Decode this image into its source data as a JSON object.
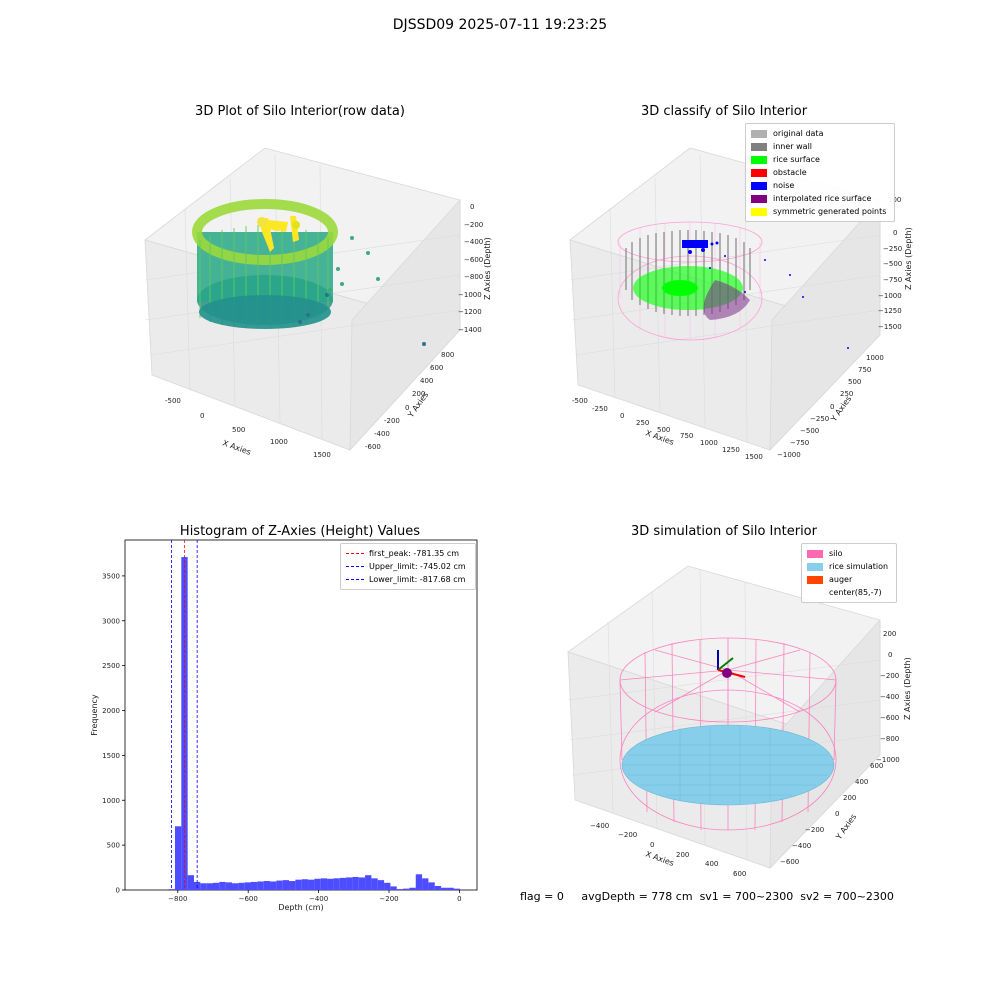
{
  "page": {
    "suptitle": "DJSSD09 2025-07-11 19:23:25",
    "status_line": {
      "flag": "flag = 0",
      "avg_depth": "avgDepth = 778 cm",
      "sv1": "sv1 = 700~2300",
      "sv2": "sv2 = 700~2300"
    }
  },
  "colors": {
    "rice_surface": "#00ff00",
    "inner_wall": "#808080",
    "original_data": "#b0b0b0",
    "obstacle": "#ff0000",
    "noise": "#0000ff",
    "interpolated_rice_surface": "#800080",
    "symmetric_generated_points": "#ffff00",
    "silo": "#ff69b4",
    "rice_simulation": "#87ceeb",
    "auger": "#ff4500",
    "histogram_bars": "#4d4dff"
  },
  "chart_data": [
    {
      "type": "scatter",
      "projection": "3d",
      "title": "3D Plot of Silo Interior(row data)",
      "xlabel": "X Axies",
      "ylabel": "Y Axies",
      "zlabel": "Z Axies (Depth)",
      "x_ticks": [
        "-500",
        "0",
        "500",
        "1000",
        "1500"
      ],
      "y_ticks": [
        "-600",
        "-400",
        "-200",
        "0",
        "200",
        "400",
        "600",
        "800"
      ],
      "z_ticks": [
        "0",
        "−200",
        "−400",
        "−600",
        "−800",
        "−1000",
        "−1200",
        "−1400"
      ],
      "colormap": "viridis"
    },
    {
      "type": "scatter",
      "projection": "3d",
      "title": "3D classify of Silo Interior",
      "xlabel": "X Axies",
      "ylabel": "Y Axies",
      "zlabel": "Z Axies (Depth)",
      "x_ticks": [
        "-500",
        "-250",
        "0",
        "250",
        "500",
        "750",
        "1000",
        "1250",
        "1500"
      ],
      "y_ticks": [
        "−1000",
        "−750",
        "−500",
        "−250",
        "0",
        "250",
        "500",
        "750",
        "1000"
      ],
      "z_ticks": [
        "100",
        "0",
        "−250",
        "−500",
        "−750",
        "−1000",
        "−1250",
        "−1500"
      ],
      "legend": [
        {
          "label": "original data",
          "color": "#b0b0b0"
        },
        {
          "label": "inner wall",
          "color": "#808080"
        },
        {
          "label": "rice surface",
          "color": "#00ff00"
        },
        {
          "label": "obstacle",
          "color": "#ff0000"
        },
        {
          "label": "noise",
          "color": "#0000ff"
        },
        {
          "label": "interpolated rice surface",
          "color": "#800080"
        },
        {
          "label": "symmetric generated points",
          "color": "#ffff00"
        }
      ],
      "legend_position": "top-right"
    },
    {
      "type": "bar",
      "title": "Histogram of Z-Axies (Height) Values",
      "xlabel": "Depth (cm)",
      "ylabel": "Frequency",
      "xlim": [
        -950,
        50
      ],
      "ylim": [
        0,
        3900
      ],
      "x_ticks": [
        -800,
        -600,
        -400,
        -200,
        0
      ],
      "y_ticks": [
        0,
        500,
        1000,
        1500,
        2000,
        2500,
        3000,
        3500
      ],
      "x_tick_labels": [
        "−800",
        "−600",
        "−400",
        "−200",
        "0"
      ],
      "bin_width": 18,
      "bins": [
        {
          "x": -826,
          "y": 10
        },
        {
          "x": -808,
          "y": 710
        },
        {
          "x": -790,
          "y": 3710
        },
        {
          "x": -772,
          "y": 165
        },
        {
          "x": -754,
          "y": 90
        },
        {
          "x": -736,
          "y": 75
        },
        {
          "x": -718,
          "y": 75
        },
        {
          "x": -700,
          "y": 80
        },
        {
          "x": -682,
          "y": 90
        },
        {
          "x": -664,
          "y": 85
        },
        {
          "x": -646,
          "y": 75
        },
        {
          "x": -628,
          "y": 80
        },
        {
          "x": -610,
          "y": 85
        },
        {
          "x": -592,
          "y": 90
        },
        {
          "x": -574,
          "y": 95
        },
        {
          "x": -556,
          "y": 100
        },
        {
          "x": -538,
          "y": 95
        },
        {
          "x": -520,
          "y": 105
        },
        {
          "x": -502,
          "y": 110
        },
        {
          "x": -484,
          "y": 100
        },
        {
          "x": -466,
          "y": 115
        },
        {
          "x": -448,
          "y": 120
        },
        {
          "x": -430,
          "y": 115
        },
        {
          "x": -412,
          "y": 125
        },
        {
          "x": -394,
          "y": 130
        },
        {
          "x": -376,
          "y": 125
        },
        {
          "x": -358,
          "y": 130
        },
        {
          "x": -340,
          "y": 135
        },
        {
          "x": -322,
          "y": 140
        },
        {
          "x": -304,
          "y": 145
        },
        {
          "x": -286,
          "y": 140
        },
        {
          "x": -268,
          "y": 165
        },
        {
          "x": -250,
          "y": 130
        },
        {
          "x": -232,
          "y": 110
        },
        {
          "x": -214,
          "y": 80
        },
        {
          "x": -196,
          "y": 40
        },
        {
          "x": -178,
          "y": 10
        },
        {
          "x": -160,
          "y": 15
        },
        {
          "x": -142,
          "y": 25
        },
        {
          "x": -124,
          "y": 175
        },
        {
          "x": -106,
          "y": 130
        },
        {
          "x": -88,
          "y": 85
        },
        {
          "x": -70,
          "y": 45
        },
        {
          "x": -52,
          "y": 25
        },
        {
          "x": -34,
          "y": 25
        },
        {
          "x": -16,
          "y": 15
        }
      ],
      "vlines": [
        {
          "label": "first_peak: -781.35 cm",
          "x": -781.35,
          "color": "#ff0000"
        },
        {
          "label": "Upper_limit: -745.02 cm",
          "x": -745.02,
          "color": "#0000ff"
        },
        {
          "label": "Lower_limit: -817.68 cm",
          "x": -817.68,
          "color": "#0000ff"
        }
      ],
      "legend_position": "top-right"
    },
    {
      "type": "scatter",
      "projection": "3d",
      "title": "3D simulation of Silo Interior",
      "xlabel": "X Axies",
      "ylabel": "Y Axies",
      "zlabel": "Z Axies (Depth)",
      "x_ticks": [
        "−400",
        "−200",
        "0",
        "200",
        "400",
        "600"
      ],
      "y_ticks": [
        "−600",
        "−400",
        "−200",
        "0",
        "200",
        "400",
        "600"
      ],
      "z_ticks": [
        "200",
        "0",
        "−200",
        "−400",
        "−600",
        "−800",
        "−1000"
      ],
      "legend": [
        {
          "label": "silo",
          "color": "#ff69b4"
        },
        {
          "label": "rice simulation",
          "color": "#87ceeb"
        },
        {
          "label": "auger",
          "color": "#ff4500"
        },
        {
          "label": "center(85,-7)",
          "color": ""
        }
      ],
      "legend_position": "top-right"
    }
  ]
}
